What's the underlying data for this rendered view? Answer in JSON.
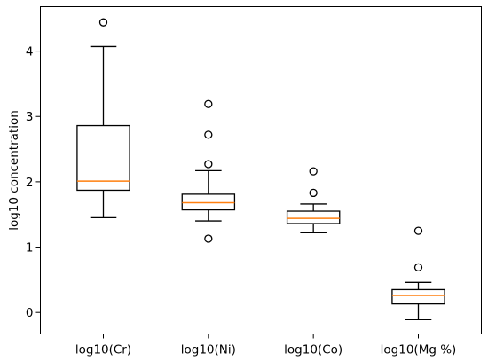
{
  "chart_data": {
    "type": "box",
    "title": "",
    "xlabel": "",
    "ylabel": "log10 concentration",
    "ylim": [
      -0.33,
      4.68
    ],
    "yticks": [
      0,
      1,
      2,
      3,
      4
    ],
    "grid": false,
    "median_color": "#ff7f0e",
    "box_color": "#000000",
    "categories": [
      "log10(Cr)",
      "log10(Ni)",
      "log10(Co)",
      "log10(Mg %)"
    ],
    "boxes": [
      {
        "label": "log10(Cr)",
        "whisker_low": 1.45,
        "q1": 1.87,
        "median": 2.01,
        "q3": 2.86,
        "whisker_high": 4.07,
        "outliers": [
          4.44
        ]
      },
      {
        "label": "log10(Ni)",
        "whisker_low": 1.4,
        "q1": 1.57,
        "median": 1.68,
        "q3": 1.81,
        "whisker_high": 2.17,
        "outliers": [
          2.27,
          2.72,
          3.19,
          1.13
        ]
      },
      {
        "label": "log10(Co)",
        "whisker_low": 1.22,
        "q1": 1.36,
        "median": 1.44,
        "q3": 1.55,
        "whisker_high": 1.66,
        "outliers": [
          1.83,
          2.16
        ]
      },
      {
        "label": "log10(Mg %)",
        "whisker_low": -0.11,
        "q1": 0.13,
        "median": 0.26,
        "q3": 0.35,
        "whisker_high": 0.46,
        "outliers": [
          0.69,
          1.25
        ]
      }
    ]
  }
}
